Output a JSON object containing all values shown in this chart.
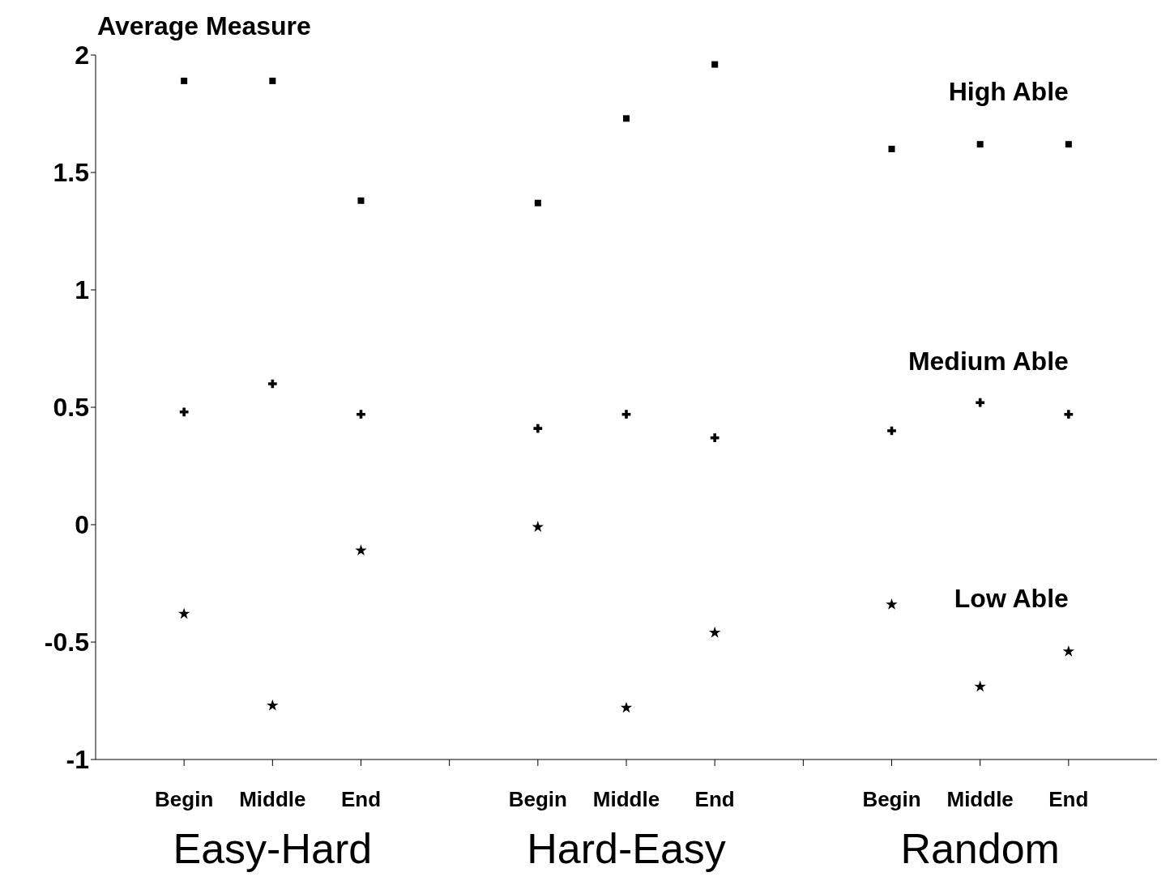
{
  "chart_data": {
    "type": "scatter",
    "ylabel": "Average Measure",
    "categories": [
      "Begin",
      "Middle",
      "End",
      null,
      "Begin",
      "Middle",
      "End",
      null,
      "Begin",
      "Middle",
      "End"
    ],
    "series": [
      {
        "name": "High Able",
        "color": "#000000",
        "marker": "square",
        "values": [
          1.89,
          1.89,
          1.38,
          null,
          1.37,
          1.73,
          1.96,
          null,
          1.6,
          1.62,
          1.62
        ]
      },
      {
        "name": "Medium Able",
        "color": "#000000",
        "marker": "cross",
        "values": [
          0.48,
          0.6,
          0.47,
          null,
          0.41,
          0.47,
          0.37,
          null,
          0.4,
          0.52,
          0.47
        ]
      },
      {
        "name": "Low Able",
        "color": "#000000",
        "marker": "star",
        "values": [
          -0.38,
          -0.77,
          -0.11,
          null,
          -0.01,
          -0.78,
          -0.46,
          null,
          -0.34,
          -0.69,
          -0.54
        ]
      }
    ],
    "ylim": [
      -1,
      2
    ],
    "yticks": [
      -1,
      -0.5,
      0,
      0.5,
      1,
      1.5,
      2
    ],
    "annotations": [
      "Easy-Hard",
      "Hard-Easy",
      "Random"
    ],
    "grid": false,
    "legend": false
  }
}
